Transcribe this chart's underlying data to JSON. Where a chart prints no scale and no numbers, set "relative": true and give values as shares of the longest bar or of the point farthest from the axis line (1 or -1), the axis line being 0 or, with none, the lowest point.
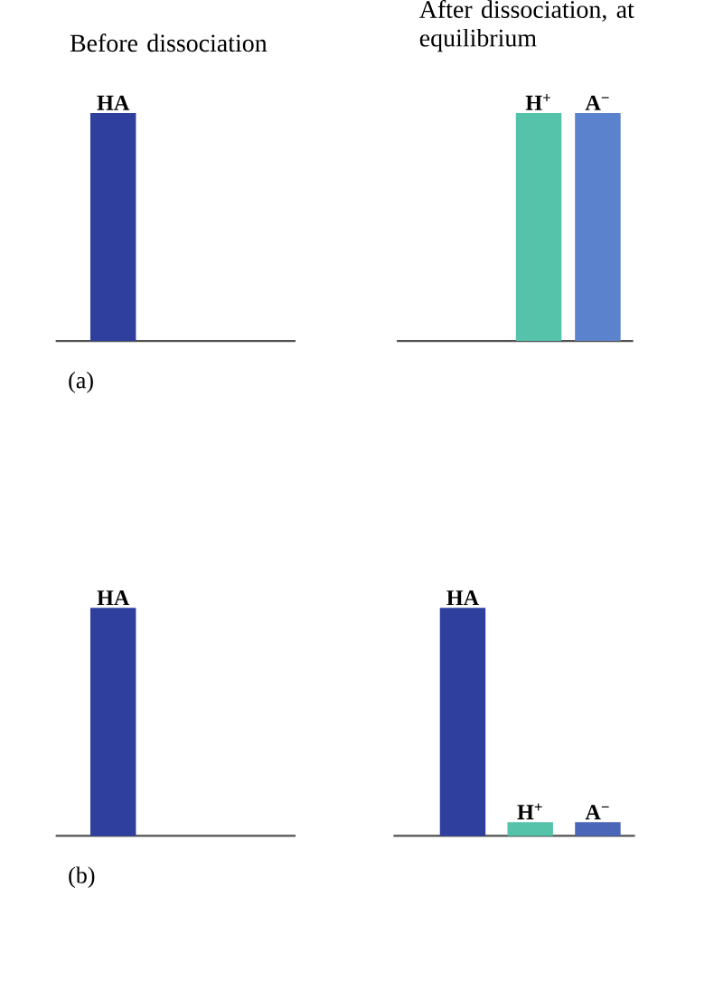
{
  "chart_data": [
    {
      "type": "bar",
      "title": "Before dissociation",
      "categories": [
        "HA"
      ],
      "values": [
        1
      ],
      "colors": [
        "#2e3f9e"
      ],
      "relative": true,
      "annotations": [
        "(a)"
      ]
    },
    {
      "type": "bar",
      "title": "After dissociation, at equilibrium",
      "categories": [
        "H$^{+}$",
        "A$^{−}$"
      ],
      "values": [
        1,
        1
      ],
      "colors": [
        "#55c2aa",
        "#5b82cc"
      ],
      "relative": true
    },
    {
      "type": "bar",
      "categories": [
        "HA"
      ],
      "values": [
        1
      ],
      "colors": [
        "#2e3f9e"
      ],
      "relative": true,
      "annotations": [
        "(b)"
      ]
    },
    {
      "type": "bar",
      "categories": [
        "HA",
        "H$^{+}$",
        "A$^{−}$"
      ],
      "values": [
        1,
        0.06,
        0.06
      ],
      "colors": [
        "#2e3f9e",
        "#55c2aa",
        "#4a66b8"
      ],
      "relative": true
    }
  ]
}
